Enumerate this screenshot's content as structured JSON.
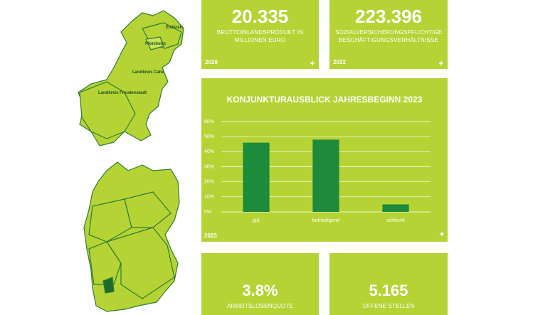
{
  "tiles": [
    {
      "value": "20.335",
      "label": "BRUTTOINLANDSPRODUKT IN MILLIONEN EURO",
      "year": "2020"
    },
    {
      "value": "223.396",
      "label": "SOZIALVERSICHERUNGSPFLICHTIGE BESCHÄFTIGUNGSVERHÄLTNISSE",
      "year": "2022"
    },
    {
      "value": "3.8%",
      "label": "ARBEITSLOSENQUOTE"
    },
    {
      "value": "5.165",
      "label": "OFFENE STELLEN"
    }
  ],
  "map": {
    "labels": [
      "Enzkreis",
      "Pforzheim",
      "Landkreis Calw",
      "Landkreis Freudenstadt"
    ]
  },
  "chart_data": {
    "type": "bar",
    "title": "KONJUNKTURAUSBLICK JAHRESBEGINN 2023",
    "year": "2023",
    "categories": [
      "gut",
      "befriedigend",
      "schlecht"
    ],
    "values": [
      46,
      48,
      5
    ],
    "color": "#1e8a3c",
    "ylim": [
      0,
      60
    ],
    "yticks": [
      {
        "value": 0,
        "label": "0%"
      },
      {
        "value": 10,
        "label": "10%"
      },
      {
        "value": 20,
        "label": "20%"
      },
      {
        "value": 30,
        "label": "30%"
      },
      {
        "value": 40,
        "label": "40%"
      },
      {
        "value": 50,
        "label": "50%"
      },
      {
        "value": 60,
        "label": "60%"
      }
    ],
    "grid": true
  }
}
